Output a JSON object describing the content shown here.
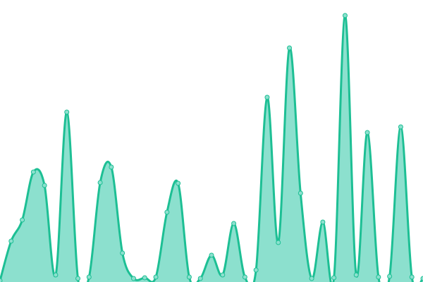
{
  "chart_data": {
    "type": "area",
    "title": "",
    "xlabel": "",
    "ylabel": "",
    "x": [
      0,
      1,
      2,
      3,
      4,
      5,
      6,
      7,
      8,
      9,
      10,
      11,
      12,
      13,
      14,
      15,
      16,
      17,
      18,
      19,
      20,
      21,
      22,
      23,
      24,
      25,
      26,
      27,
      28,
      29,
      30,
      31,
      32,
      33,
      34,
      35,
      36,
      37,
      38
    ],
    "values": [
      2,
      58,
      88,
      156,
      137,
      10,
      241,
      5,
      7,
      141,
      163,
      41,
      5,
      6,
      7,
      99,
      140,
      7,
      5,
      38,
      10,
      83,
      7,
      17,
      262,
      56,
      332,
      126,
      5,
      85,
      6,
      378,
      10,
      212,
      7,
      8,
      220,
      7,
      5
    ],
    "ylim": [
      0,
      400
    ],
    "grid": false,
    "axes_visible": false,
    "curve": "smooth",
    "colors": {
      "line": "#1dbf94",
      "fill": "#8ce0ce",
      "marker_fill": "#8ce0ce",
      "marker_stroke": "#1dbf94"
    }
  }
}
